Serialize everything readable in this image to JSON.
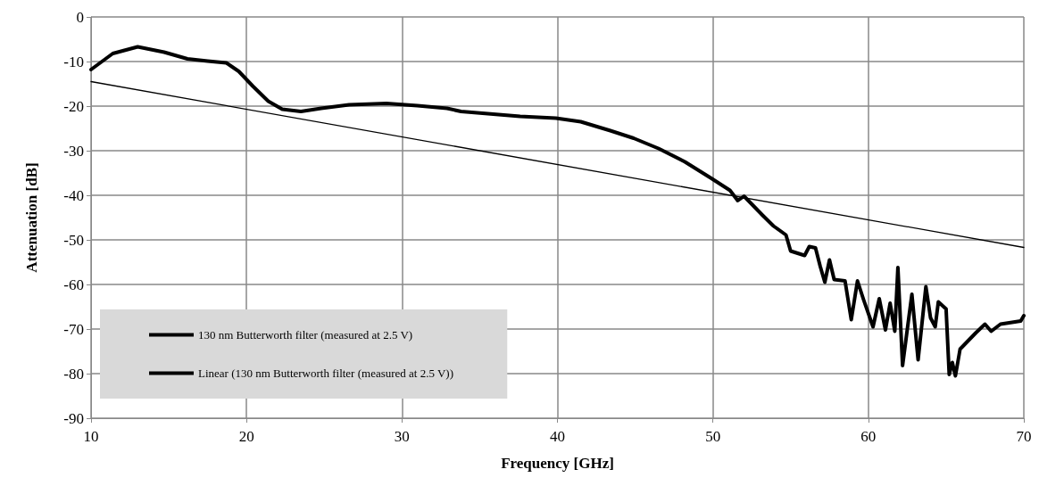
{
  "chart_data": {
    "type": "line",
    "xlabel": "Frequency [GHz]",
    "ylabel": "Attenuation [dB]",
    "xlim": [
      10,
      70
    ],
    "xticks": [
      10,
      20,
      30,
      40,
      50,
      60,
      70
    ],
    "ylim": [
      -90,
      0
    ],
    "yticks": [
      -90,
      -80,
      -70,
      -60,
      -50,
      -40,
      -30,
      -20,
      -10,
      0
    ],
    "grid": true,
    "legend": "bottom left",
    "marker": "none",
    "series": [
      {
        "name": "130 nm Butterworth filter (measured at 2.5 V)",
        "color": "#000000",
        "x": [
          10,
          11.4,
          13.0,
          14.7,
          16.2,
          17.5,
          18.7,
          19.5,
          20.4,
          21.4,
          22.3,
          23.5,
          24.8,
          26.6,
          29,
          31,
          32.9,
          33.8,
          37.6,
          39.9,
          41.5,
          43.4,
          44.9,
          46.5,
          48.2,
          49.9,
          51.1,
          51.6,
          52,
          53.2,
          53.9,
          54.7,
          55,
          55.9,
          56.2,
          56.6,
          56.9,
          57.2,
          57.5,
          57.8,
          58.5,
          58.9,
          59.3,
          59.7,
          60.3,
          60.7,
          61.1,
          61.4,
          61.7,
          61.9,
          62.2,
          62.8,
          63.2,
          63.7,
          64,
          64.3,
          64.5,
          65,
          65.2,
          65.4,
          65.6,
          65.9,
          66.9,
          67.5,
          67.9,
          68.5,
          69.8,
          70
        ],
        "values": [
          -11.8,
          -8.2,
          -6.7,
          -7.9,
          -9.4,
          -9.9,
          -10.3,
          -12.2,
          -15.5,
          -18.9,
          -20.7,
          -21.2,
          -20.5,
          -19.7,
          -19.4,
          -19.9,
          -20.5,
          -21.2,
          -22.3,
          -22.7,
          -23.5,
          -25.5,
          -27.2,
          -29.5,
          -32.5,
          -36.2,
          -38.9,
          -41.2,
          -40.2,
          -44.5,
          -46.9,
          -48.9,
          -52.5,
          -53.5,
          -51.5,
          -51.8,
          -55.9,
          -59.5,
          -54.5,
          -58.9,
          -59.2,
          -67.9,
          -59.2,
          -63.5,
          -69.5,
          -63.2,
          -70.2,
          -64.2,
          -70.5,
          -56.2,
          -78.2,
          -62.2,
          -76.9,
          -60.5,
          -67.5,
          -69.5,
          -63.9,
          -65.5,
          -80.2,
          -77.5,
          -80.5,
          -74.5,
          -70.9,
          -68.9,
          -70.5,
          -68.9,
          -68.2,
          -67
        ]
      },
      {
        "name": "Linear (130 nm Butterworth filter (measured at 2.5 V))",
        "color": "#000000",
        "x": [
          10,
          70
        ],
        "values": [
          -14.5,
          -51.7
        ]
      }
    ]
  }
}
